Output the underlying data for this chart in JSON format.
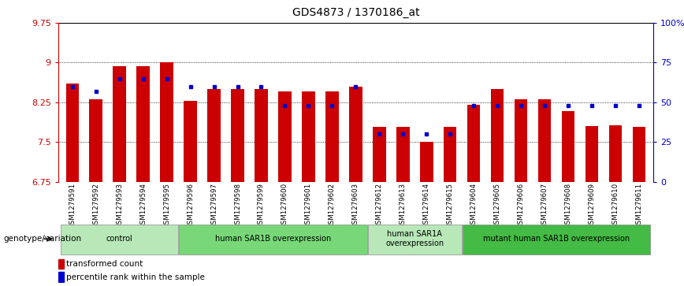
{
  "title": "GDS4873 / 1370186_at",
  "samples": [
    "GSM1279591",
    "GSM1279592",
    "GSM1279593",
    "GSM1279594",
    "GSM1279595",
    "GSM1279596",
    "GSM1279597",
    "GSM1279598",
    "GSM1279599",
    "GSM1279600",
    "GSM1279601",
    "GSM1279602",
    "GSM1279603",
    "GSM1279612",
    "GSM1279613",
    "GSM1279614",
    "GSM1279615",
    "GSM1279604",
    "GSM1279605",
    "GSM1279606",
    "GSM1279607",
    "GSM1279608",
    "GSM1279609",
    "GSM1279610",
    "GSM1279611"
  ],
  "red_values": [
    8.6,
    8.3,
    8.93,
    8.93,
    9.0,
    8.28,
    8.5,
    8.5,
    8.5,
    8.46,
    8.46,
    8.46,
    8.55,
    7.78,
    7.78,
    7.5,
    7.78,
    8.2,
    8.5,
    8.3,
    8.3,
    8.08,
    7.8,
    7.82,
    7.78
  ],
  "blue_values_pct": [
    60,
    57,
    65,
    65,
    65,
    60,
    60,
    60,
    60,
    48,
    48,
    48,
    60,
    30,
    30,
    30,
    30,
    48,
    48,
    48,
    48,
    48,
    48,
    48,
    48
  ],
  "groups": [
    {
      "label": "control",
      "start": 0,
      "end": 5,
      "color": "#b8e8b8"
    },
    {
      "label": "human SAR1B overexpression",
      "start": 5,
      "end": 13,
      "color": "#78d878"
    },
    {
      "label": "human SAR1A\noverexpression",
      "start": 13,
      "end": 17,
      "color": "#b8e8b8"
    },
    {
      "label": "mutant human SAR1B overexpression",
      "start": 17,
      "end": 25,
      "color": "#44bb44"
    }
  ],
  "ylim_left": [
    6.75,
    9.75
  ],
  "ylim_right": [
    0,
    100
  ],
  "yticks_left": [
    6.75,
    7.5,
    8.25,
    9.0,
    9.75
  ],
  "ytick_labels_left": [
    "6.75",
    "7.5",
    "8.25",
    "9",
    "9.75"
  ],
  "yticks_right": [
    0,
    25,
    50,
    75,
    100
  ],
  "ytick_labels_right": [
    "0",
    "25",
    "50",
    "75",
    "100%"
  ],
  "bar_width": 0.55,
  "red_color": "#cc0000",
  "blue_color": "#0000cc",
  "bg_color": "#ffffff",
  "axis_color_left": "#cc0000",
  "axis_color_right": "#0000cc",
  "genotype_label": "genotype/variation",
  "legend_red": "transformed count",
  "legend_blue": "percentile rank within the sample",
  "bottom_gray": "#c8c8c8",
  "grid_dotted": [
    7.5,
    8.25,
    9.0
  ]
}
